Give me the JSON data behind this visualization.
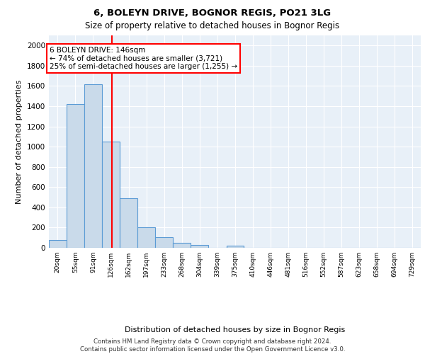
{
  "title1": "6, BOLEYN DRIVE, BOGNOR REGIS, PO21 3LG",
  "title2": "Size of property relative to detached houses in Bognor Regis",
  "xlabel": "Distribution of detached houses by size in Bognor Regis",
  "ylabel": "Number of detached properties",
  "categories": [
    "20sqm",
    "55sqm",
    "91sqm",
    "126sqm",
    "162sqm",
    "197sqm",
    "233sqm",
    "268sqm",
    "304sqm",
    "339sqm",
    "375sqm",
    "410sqm",
    "446sqm",
    "481sqm",
    "516sqm",
    "552sqm",
    "587sqm",
    "623sqm",
    "658sqm",
    "694sqm",
    "729sqm"
  ],
  "bar_color": "#c9daea",
  "bar_edge_color": "#5b9bd5",
  "bar_heights": [
    75,
    1420,
    1620,
    1050,
    490,
    205,
    105,
    50,
    30,
    0,
    20,
    0,
    0,
    0,
    0,
    0,
    0,
    0,
    0,
    0,
    0
  ],
  "bin_edges": [
    20,
    55,
    91,
    126,
    162,
    197,
    233,
    268,
    304,
    339,
    375,
    410,
    446,
    481,
    516,
    552,
    587,
    623,
    658,
    694,
    729,
    764
  ],
  "red_line_x": 146,
  "annotation_text": "6 BOLEYN DRIVE: 146sqm\n← 74% of detached houses are smaller (3,721)\n25% of semi-detached houses are larger (1,255) →",
  "annotation_box_color": "white",
  "annotation_border_color": "red",
  "ylim": [
    0,
    2100
  ],
  "yticks": [
    0,
    200,
    400,
    600,
    800,
    1000,
    1200,
    1400,
    1600,
    1800,
    2000
  ],
  "footer": "Contains HM Land Registry data © Crown copyright and database right 2024.\nContains public sector information licensed under the Open Government Licence v3.0.",
  "plot_bg_color": "#e8f0f8",
  "fig_bg_color": "#ffffff",
  "grid_color": "#ffffff"
}
